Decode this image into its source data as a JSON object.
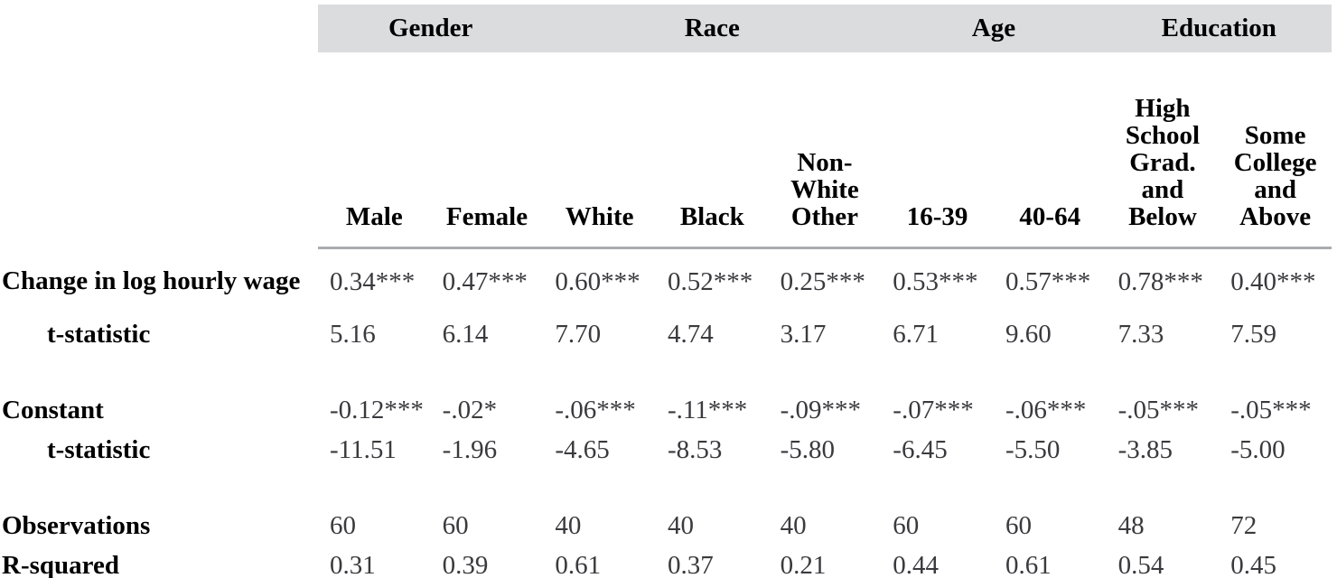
{
  "table": {
    "groups": [
      {
        "label": "Gender",
        "span": 2
      },
      {
        "label": "Race",
        "span": 3
      },
      {
        "label": "Age",
        "span": 2
      },
      {
        "label": "Education",
        "span": 2
      }
    ],
    "columns": [
      "Male",
      "Female",
      "White",
      "Black",
      "Non-\nWhite\nOther",
      "16-39",
      "40-64",
      "High\nSchool\nGrad.\nand\nBelow",
      "Some\nCollege\nand\nAbove"
    ],
    "rows": [
      {
        "label": "Change in log hourly wage",
        "values": [
          "0.34***",
          "0.47***",
          "0.60***",
          "0.52***",
          "0.25***",
          "0.53***",
          "0.57***",
          "0.78***",
          "0.40***"
        ]
      },
      {
        "label": "t-statistic",
        "values": [
          "5.16",
          "6.14",
          "7.70",
          "4.74",
          "3.17",
          "6.71",
          "9.60",
          "7.33",
          "7.59"
        ]
      },
      {
        "label": "Constant",
        "values": [
          "-0.12***",
          "-.02*",
          "-.06***",
          "-.11***",
          "-.09***",
          "-.07***",
          "-.06***",
          "-.05***",
          "-.05***"
        ]
      },
      {
        "label": "t-statistic",
        "values": [
          "-11.51",
          "-1.96",
          "-4.65",
          "-8.53",
          "-5.80",
          "-6.45",
          "-5.50",
          "-3.85",
          "-5.00"
        ]
      },
      {
        "label": "Observations",
        "values": [
          "60",
          "60",
          "40",
          "40",
          "40",
          "60",
          "60",
          "48",
          "72"
        ]
      },
      {
        "label": "R-squared",
        "values": [
          "0.31",
          "0.39",
          "0.61",
          "0.37",
          "0.21",
          "0.44",
          "0.61",
          "0.54",
          "0.45"
        ]
      }
    ],
    "colors": {
      "band_background": "#dbdcde",
      "header_rule": "#a9acae",
      "label_text": "#000000",
      "value_text": "#3a3a3e"
    }
  }
}
